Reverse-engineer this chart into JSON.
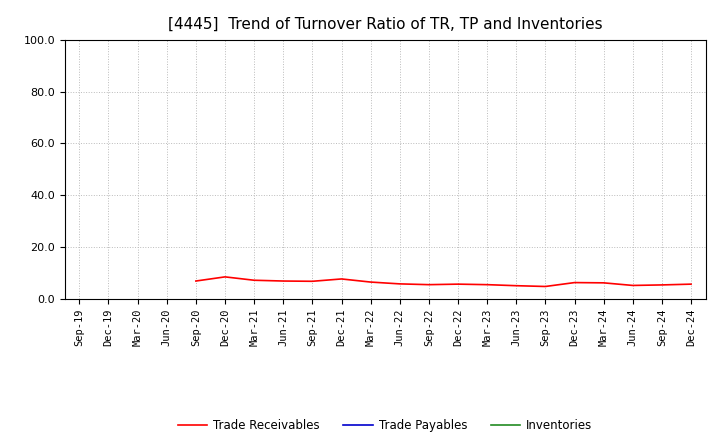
{
  "title": "[4445]  Trend of Turnover Ratio of TR, TP and Inventories",
  "ylim": [
    0.0,
    100.0
  ],
  "yticks": [
    0.0,
    20.0,
    40.0,
    60.0,
    80.0,
    100.0
  ],
  "x_labels": [
    "Sep-19",
    "Dec-19",
    "Mar-20",
    "Jun-20",
    "Sep-20",
    "Dec-20",
    "Mar-21",
    "Jun-21",
    "Sep-21",
    "Dec-21",
    "Mar-22",
    "Jun-22",
    "Sep-22",
    "Dec-22",
    "Mar-23",
    "Jun-23",
    "Sep-23",
    "Dec-23",
    "Mar-24",
    "Jun-24",
    "Sep-24",
    "Dec-24"
  ],
  "trade_receivables": [
    null,
    null,
    null,
    null,
    7.0,
    8.6,
    7.3,
    7.0,
    6.9,
    7.8,
    6.6,
    5.9,
    5.6,
    5.8,
    5.6,
    5.2,
    4.9,
    6.4,
    6.3,
    5.3,
    5.5,
    5.8
  ],
  "trade_payables": [
    null,
    null,
    null,
    null,
    null,
    null,
    null,
    null,
    null,
    null,
    null,
    null,
    null,
    null,
    null,
    null,
    null,
    null,
    null,
    null,
    null,
    null
  ],
  "inventories": [
    null,
    null,
    null,
    null,
    null,
    null,
    null,
    null,
    null,
    null,
    null,
    null,
    null,
    null,
    null,
    null,
    null,
    null,
    null,
    null,
    null,
    null
  ],
  "tr_color": "#ff0000",
  "tp_color": "#0000cd",
  "inv_color": "#228b22",
  "background_color": "#ffffff",
  "grid_color": "#bbbbbb",
  "title_fontsize": 11,
  "tick_fontsize": 7.5,
  "legend_labels": [
    "Trade Receivables",
    "Trade Payables",
    "Inventories"
  ]
}
